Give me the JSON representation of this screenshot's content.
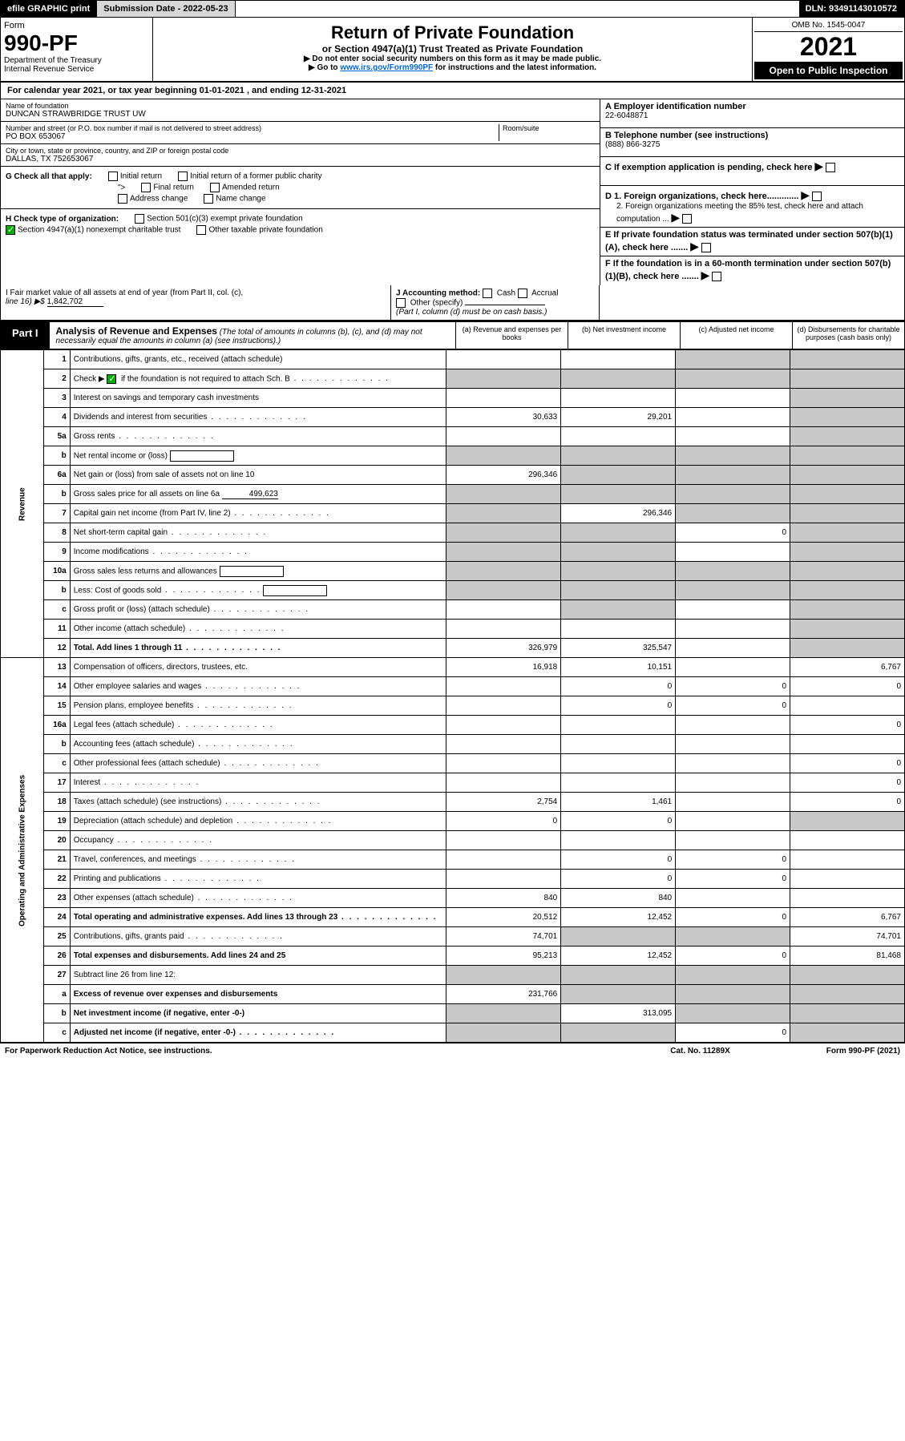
{
  "topbar": {
    "efile": "efile GRAPHIC print",
    "submission_label": "Submission Date - ",
    "submission_date": "2022-05-23",
    "dln_label": "DLN: ",
    "dln": "93491143010572"
  },
  "header": {
    "form_label": "Form",
    "form_no": "990-PF",
    "dept1": "Department of the Treasury",
    "dept2": "Internal Revenue Service",
    "title": "Return of Private Foundation",
    "subtitle": "or Section 4947(a)(1) Trust Treated as Private Foundation",
    "note1": "▶ Do not enter social security numbers on this form as it may be made public.",
    "note2_pre": "▶ Go to ",
    "note2_link": "www.irs.gov/Form990PF",
    "note2_post": " for instructions and the latest information.",
    "omb": "OMB No. 1545-0047",
    "year": "2021",
    "open": "Open to Public Inspection"
  },
  "cal": "For calendar year 2021, or tax year beginning 01-01-2021           , and ending 12-31-2021",
  "entity": {
    "name_label": "Name of foundation",
    "name": "DUNCAN STRAWBRIDGE TRUST UW",
    "addr_label": "Number and street (or P.O. box number if mail is not delivered to street address)",
    "addr": "PO BOX 653067",
    "room_label": "Room/suite",
    "city_label": "City or town, state or province, country, and ZIP or foreign postal code",
    "city": "DALLAS, TX  752653067"
  },
  "right": {
    "a_label": "A Employer identification number",
    "a_val": "22-6048871",
    "b_label": "B Telephone number (see instructions)",
    "b_val": "(888) 866-3275",
    "c_label": "C If exemption application is pending, check here",
    "d1_label": "D 1. Foreign organizations, check here.............",
    "d2_label": "2. Foreign organizations meeting the 85% test, check here and attach computation ...",
    "e_label": "E  If private foundation status was terminated under section 507(b)(1)(A), check here .......",
    "f_label": "F  If the foundation is in a 60-month termination under section 507(b)(1)(B), check here ......."
  },
  "g": {
    "label": "G Check all that apply:",
    "opts": [
      "Initial return",
      "Initial return of a former public charity",
      "Final return",
      "Amended return",
      "Address change",
      "Name change"
    ]
  },
  "h": {
    "label": "H Check type of organization:",
    "o1": "Section 501(c)(3) exempt private foundation",
    "o2": "Section 4947(a)(1) nonexempt charitable trust",
    "o3": "Other taxable private foundation"
  },
  "i": {
    "label1": "I Fair market value of all assets at end of year (from Part II, col. (c),",
    "label2": "line 16) ▶$ ",
    "val": "1,842,702"
  },
  "j": {
    "label": "J Accounting method:",
    "cash": "Cash",
    "accrual": "Accrual",
    "other": "Other (specify)",
    "note": "(Part I, column (d) must be on cash basis.)"
  },
  "part1": {
    "tag": "Part I",
    "title": "Analysis of Revenue and Expenses",
    "sub": " (The total of amounts in columns (b), (c), and (d) may not necessarily equal the amounts in column (a) (see instructions).)",
    "cols": [
      "(a)   Revenue and expenses per books",
      "(b)   Net investment income",
      "(c)   Adjusted net income",
      "(d)   Disbursements for charitable purposes (cash basis only)"
    ]
  },
  "side": {
    "rev": "Revenue",
    "exp": "Operating and Administrative Expenses"
  },
  "rows": [
    {
      "n": "1",
      "d": "Contributions, gifts, grants, etc., received (attach schedule)",
      "a": "",
      "b": "",
      "c": "g",
      "dd": "g"
    },
    {
      "n": "2",
      "d": "Check ▶ ☑ if the foundation is not required to attach Sch. B",
      "dots": true,
      "a": "g",
      "b": "g",
      "c": "g",
      "dd": "g"
    },
    {
      "n": "3",
      "d": "Interest on savings and temporary cash investments",
      "a": "",
      "b": "",
      "c": "",
      "dd": "g"
    },
    {
      "n": "4",
      "d": "Dividends and interest from securities",
      "dots": true,
      "a": "30,633",
      "b": "29,201",
      "c": "",
      "dd": "g"
    },
    {
      "n": "5a",
      "d": "Gross rents",
      "dots": true,
      "a": "",
      "b": "",
      "c": "",
      "dd": "g"
    },
    {
      "n": "b",
      "d": "Net rental income or (loss)",
      "box": true,
      "a": "g",
      "b": "g",
      "c": "g",
      "dd": "g"
    },
    {
      "n": "6a",
      "d": "Net gain or (loss) from sale of assets not on line 10",
      "a": "296,346",
      "b": "g",
      "c": "g",
      "dd": "g"
    },
    {
      "n": "b",
      "d": "Gross sales price for all assets on line 6a",
      "inline": "499,623",
      "a": "g",
      "b": "g",
      "c": "g",
      "dd": "g"
    },
    {
      "n": "7",
      "d": "Capital gain net income (from Part IV, line 2)",
      "dots": true,
      "a": "g",
      "b": "296,346",
      "c": "g",
      "dd": "g"
    },
    {
      "n": "8",
      "d": "Net short-term capital gain",
      "dots": true,
      "a": "g",
      "b": "g",
      "c": "0",
      "dd": "g"
    },
    {
      "n": "9",
      "d": "Income modifications",
      "dots": true,
      "a": "g",
      "b": "g",
      "c": "",
      "dd": "g"
    },
    {
      "n": "10a",
      "d": "Gross sales less returns and allowances",
      "box": true,
      "a": "g",
      "b": "g",
      "c": "g",
      "dd": "g"
    },
    {
      "n": "b",
      "d": "Less: Cost of goods sold",
      "dots": true,
      "box": true,
      "a": "g",
      "b": "g",
      "c": "g",
      "dd": "g"
    },
    {
      "n": "c",
      "d": "Gross profit or (loss) (attach schedule)",
      "dots": true,
      "a": "",
      "b": "g",
      "c": "",
      "dd": "g"
    },
    {
      "n": "11",
      "d": "Other income (attach schedule)",
      "dots": true,
      "a": "",
      "b": "",
      "c": "",
      "dd": "g"
    },
    {
      "n": "12",
      "d": "Total. Add lines 1 through 11",
      "dots": true,
      "bold": true,
      "a": "326,979",
      "b": "325,547",
      "c": "",
      "dd": "g"
    },
    {
      "n": "13",
      "d": "Compensation of officers, directors, trustees, etc.",
      "a": "16,918",
      "b": "10,151",
      "c": "",
      "dd": "6,767"
    },
    {
      "n": "14",
      "d": "Other employee salaries and wages",
      "dots": true,
      "a": "",
      "b": "0",
      "c": "0",
      "dd": "0"
    },
    {
      "n": "15",
      "d": "Pension plans, employee benefits",
      "dots": true,
      "a": "",
      "b": "0",
      "c": "0",
      "dd": ""
    },
    {
      "n": "16a",
      "d": "Legal fees (attach schedule)",
      "dots": true,
      "a": "",
      "b": "",
      "c": "",
      "dd": "0"
    },
    {
      "n": "b",
      "d": "Accounting fees (attach schedule)",
      "dots": true,
      "a": "",
      "b": "",
      "c": "",
      "dd": ""
    },
    {
      "n": "c",
      "d": "Other professional fees (attach schedule)",
      "dots": true,
      "a": "",
      "b": "",
      "c": "",
      "dd": "0"
    },
    {
      "n": "17",
      "d": "Interest",
      "dots": true,
      "a": "",
      "b": "",
      "c": "",
      "dd": "0"
    },
    {
      "n": "18",
      "d": "Taxes (attach schedule) (see instructions)",
      "dots": true,
      "a": "2,754",
      "b": "1,461",
      "c": "",
      "dd": "0"
    },
    {
      "n": "19",
      "d": "Depreciation (attach schedule) and depletion",
      "dots": true,
      "a": "0",
      "b": "0",
      "c": "",
      "dd": "g"
    },
    {
      "n": "20",
      "d": "Occupancy",
      "dots": true,
      "a": "",
      "b": "",
      "c": "",
      "dd": ""
    },
    {
      "n": "21",
      "d": "Travel, conferences, and meetings",
      "dots": true,
      "a": "",
      "b": "0",
      "c": "0",
      "dd": ""
    },
    {
      "n": "22",
      "d": "Printing and publications",
      "dots": true,
      "a": "",
      "b": "0",
      "c": "0",
      "dd": ""
    },
    {
      "n": "23",
      "d": "Other expenses (attach schedule)",
      "dots": true,
      "a": "840",
      "b": "840",
      "c": "",
      "dd": ""
    },
    {
      "n": "24",
      "d": "Total operating and administrative expenses. Add lines 13 through 23",
      "dots": true,
      "bold": true,
      "a": "20,512",
      "b": "12,452",
      "c": "0",
      "dd": "6,767"
    },
    {
      "n": "25",
      "d": "Contributions, gifts, grants paid",
      "dots": true,
      "a": "74,701",
      "b": "g",
      "c": "g",
      "dd": "74,701"
    },
    {
      "n": "26",
      "d": "Total expenses and disbursements. Add lines 24 and 25",
      "bold": true,
      "a": "95,213",
      "b": "12,452",
      "c": "0",
      "dd": "81,468"
    },
    {
      "n": "27",
      "d": "Subtract line 26 from line 12:",
      "a": "g",
      "b": "g",
      "c": "g",
      "dd": "g"
    },
    {
      "n": "a",
      "d": "Excess of revenue over expenses and disbursements",
      "bold": true,
      "a": "231,766",
      "b": "g",
      "c": "g",
      "dd": "g"
    },
    {
      "n": "b",
      "d": "Net investment income (if negative, enter -0-)",
      "bold": true,
      "a": "g",
      "b": "313,095",
      "c": "g",
      "dd": "g"
    },
    {
      "n": "c",
      "d": "Adjusted net income (if negative, enter -0-)",
      "dots": true,
      "bold": true,
      "a": "g",
      "b": "g",
      "c": "0",
      "dd": "g"
    }
  ],
  "footer": {
    "l": "For Paperwork Reduction Act Notice, see instructions.",
    "m": "Cat. No. 11289X",
    "r": "Form 990-PF (2021)"
  }
}
